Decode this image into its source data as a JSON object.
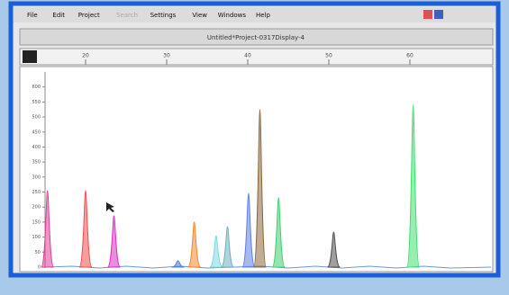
{
  "menu": [
    "File",
    "Edit",
    "Project",
    "Search",
    "Settings",
    "View",
    "Windows",
    "Help"
  ],
  "window": {
    "title": "Untitled*Project-0317Display-4"
  },
  "chart_data": {
    "type": "peaks",
    "x": [
      15.3,
      20.0,
      23.5,
      31.4,
      33.4,
      36.1,
      37.5,
      40.1,
      41.5,
      43.8,
      50.6,
      60.4
    ],
    "values": [
      255,
      255,
      171,
      21,
      150,
      105,
      135,
      246,
      525,
      231,
      117,
      540
    ],
    "colors": [
      "#e0409a",
      "#f05050",
      "#d830c8",
      "#5080d0",
      "#f08a30",
      "#80d8e0",
      "#70b0c0",
      "#6080e8",
      "#8a6a40",
      "#40d070",
      "#505050",
      "#40e070"
    ],
    "xlim": [
      15,
      70
    ],
    "xticks": [
      20,
      30,
      40,
      50,
      60
    ],
    "ylim": [
      0,
      650
    ],
    "yticks": [
      0,
      50,
      100,
      150,
      200,
      250,
      300,
      350,
      400,
      450,
      500,
      550,
      600
    ]
  }
}
